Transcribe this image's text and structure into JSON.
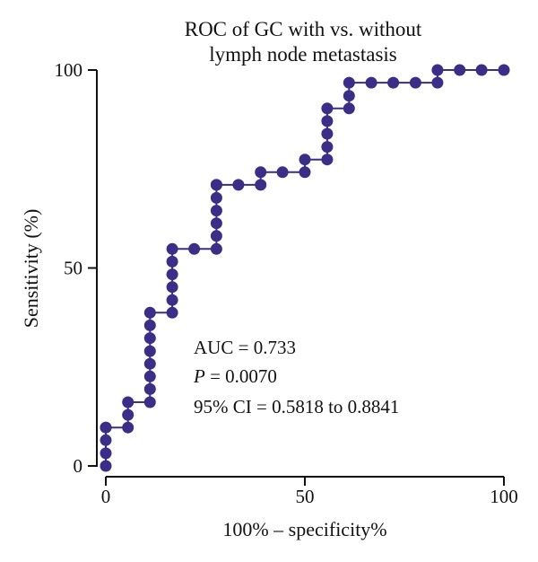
{
  "chart_data": {
    "type": "line",
    "title_lines": [
      "ROC of GC with vs. without",
      "lymph node metastasis"
    ],
    "xlabel": "100% – specificity%",
    "ylabel": "Sensitivity (%)",
    "xlim": [
      0,
      100
    ],
    "ylim": [
      0,
      100
    ],
    "x_ticks": [
      0,
      50,
      100
    ],
    "y_ticks": [
      0,
      50,
      100
    ],
    "grid": false,
    "marker_color": "#3a2e86",
    "line_color": "#3a2e86",
    "annotations": [
      {
        "prefix": "AUC = ",
        "value": "0.733",
        "italic_prefix": false
      },
      {
        "prefix": "P",
        "value": " = 0.0070",
        "italic_prefix": true
      },
      {
        "prefix": "95% CI = ",
        "value": "0.5818 to 0.8841",
        "italic_prefix": false
      }
    ],
    "series": [
      {
        "x": [
          0,
          0,
          0,
          0,
          0,
          5.56,
          5.56,
          5.56,
          11.1,
          11.1,
          11.1,
          11.1,
          11.1,
          11.1,
          11.1,
          11.1,
          16.7,
          16.7,
          16.7,
          16.7,
          16.7,
          16.7,
          22.2,
          27.8,
          27.8,
          27.8,
          27.8,
          27.8,
          27.8,
          27.8,
          33.3,
          38.9,
          38.9,
          44.4,
          50,
          50,
          55.6,
          55.6,
          55.6,
          55.6,
          55.6,
          61.1,
          61.1,
          61.1,
          66.7,
          72.2,
          77.8,
          83.3,
          83.3,
          88.9,
          94.4,
          100
        ],
        "y": [
          0,
          3.2,
          6.5,
          9.7,
          9.7,
          9.7,
          12.9,
          16.1,
          16.1,
          19.4,
          22.6,
          25.8,
          29,
          32.3,
          35.5,
          38.7,
          38.7,
          41.9,
          45.2,
          48.4,
          51.6,
          54.8,
          54.8,
          54.8,
          58.1,
          61.3,
          64.5,
          67.7,
          71,
          71,
          71,
          71,
          74.2,
          74.2,
          74.2,
          77.4,
          77.4,
          80.6,
          83.9,
          87.1,
          90.3,
          90.3,
          93.5,
          96.8,
          96.8,
          96.8,
          96.8,
          96.8,
          100,
          100,
          100,
          100
        ]
      }
    ]
  }
}
